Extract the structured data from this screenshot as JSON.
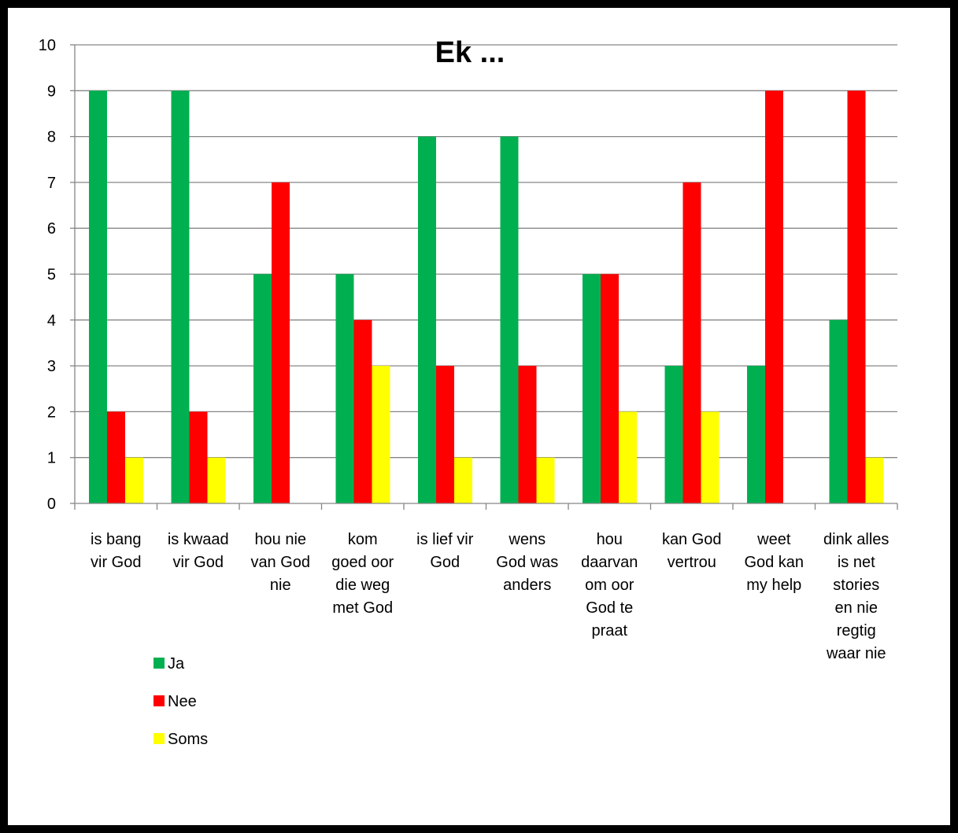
{
  "chart_data": {
    "type": "bar",
    "title": "Ek ...",
    "xlabel": "",
    "ylabel": "",
    "ylim": [
      0,
      10
    ],
    "yticks": [
      0,
      1,
      2,
      3,
      4,
      5,
      6,
      7,
      8,
      9,
      10
    ],
    "grid": true,
    "legend_position": "bottom-left",
    "categories": [
      [
        "is bang",
        "vir God"
      ],
      [
        "is kwaad",
        "vir God"
      ],
      [
        "hou nie",
        "van God",
        "nie"
      ],
      [
        "kom",
        "goed oor",
        "die weg",
        "met God"
      ],
      [
        "is lief vir",
        "God"
      ],
      [
        "wens",
        "God was",
        "anders"
      ],
      [
        "hou",
        "daarvan",
        "om oor",
        "God te",
        "praat"
      ],
      [
        "kan God",
        "vertrou"
      ],
      [
        "weet",
        "God kan",
        "my help"
      ],
      [
        "dink alles",
        "is net",
        "stories",
        "en nie",
        "regtig",
        "waar nie"
      ]
    ],
    "series": [
      {
        "name": "Ja",
        "color": "#00b050",
        "values": [
          9,
          9,
          5,
          5,
          8,
          8,
          5,
          3,
          3,
          4
        ]
      },
      {
        "name": "Nee",
        "color": "#ff0000",
        "values": [
          2,
          2,
          7,
          4,
          3,
          3,
          5,
          7,
          9,
          9
        ]
      },
      {
        "name": "Soms",
        "color": "#ffff00",
        "values": [
          1,
          1,
          0,
          3,
          1,
          1,
          2,
          2,
          0,
          1
        ]
      }
    ]
  }
}
